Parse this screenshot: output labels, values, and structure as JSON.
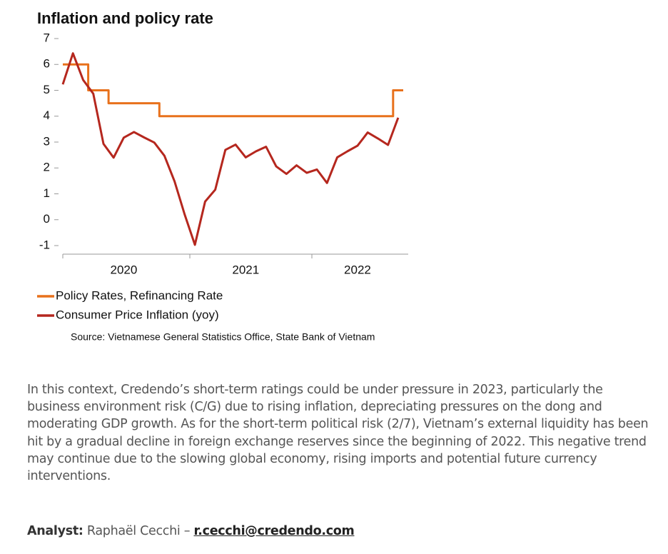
{
  "chart_data": {
    "type": "line",
    "title": "Inflation and policy rate",
    "categories": [
      null,
      null,
      null,
      null,
      null,
      null,
      "2020",
      null,
      null,
      null,
      null,
      null,
      null,
      null,
      null,
      null,
      null,
      null,
      "2021",
      null,
      null,
      null,
      null,
      null,
      null,
      null,
      null,
      null,
      null,
      "2022",
      null,
      null,
      null,
      null
    ],
    "series": [
      {
        "name": "Policy Rates, Refinancing Rate",
        "color": "#e8711c",
        "step": true,
        "values": [
          6,
          6,
          6,
          5,
          5,
          4.5,
          4.5,
          4.5,
          4.5,
          4.5,
          4,
          4,
          4,
          4,
          4,
          4,
          4,
          4,
          4,
          4,
          4,
          4,
          4,
          4,
          4,
          4,
          4,
          4,
          4,
          4,
          4,
          4,
          4,
          5
        ]
      },
      {
        "name": "Consumer Price Inflation (yoy)",
        "color": "#b5271e",
        "step": false,
        "values": [
          5.23,
          6.43,
          5.4,
          4.87,
          2.93,
          2.4,
          3.17,
          3.39,
          3.18,
          2.98,
          2.47,
          1.48,
          0.19,
          -0.97,
          0.7,
          1.16,
          2.7,
          2.9,
          2.41,
          2.64,
          2.82,
          2.06,
          1.77,
          2.1,
          1.81,
          1.94,
          1.42,
          2.41,
          2.64,
          2.86,
          3.37,
          3.14,
          2.89,
          3.94
        ]
      }
    ],
    "ylim": [
      -1,
      7
    ],
    "yticks": [
      -1,
      0,
      1,
      2,
      3,
      4,
      5,
      6,
      7
    ],
    "source": "Source: Vietnamese General Statistics Office, State Bank of Vietnam"
  },
  "body": {
    "paragraph": "In this context, Credendo’s short-term ratings could be under pressure in 2023, particularly the business environment risk (C/G) due to rising inflation, depreciating pressures on the dong and moderating GDP growth. As for the short-term political risk (2/7), Vietnam’s external liquidity has been hit by a gradual decline in foreign exchange reserves since the beginning of 2022. This negative trend may continue due to the slowing global economy, rising imports and potential future currency interventions.",
    "analyst_label": "Analyst:",
    "analyst_name": "Raphaël Cecchi –",
    "analyst_email": "r.cecchi@credendo.com"
  }
}
